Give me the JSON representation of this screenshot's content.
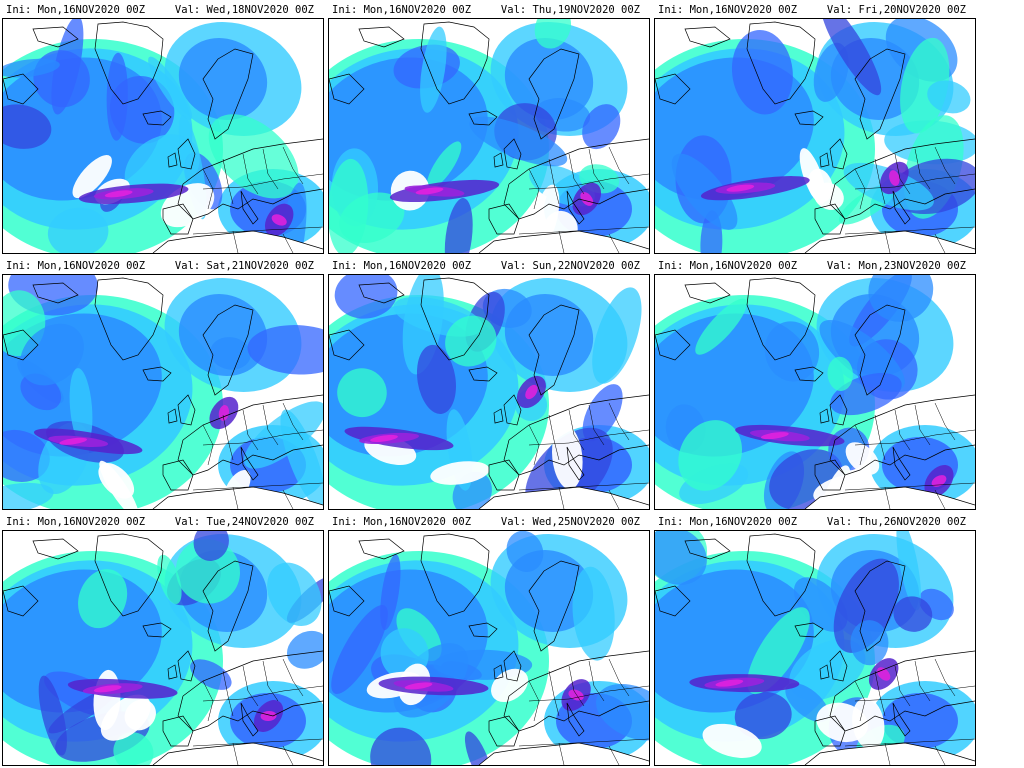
{
  "panels": [
    {
      "ini": "Ini: Mon,16NOV2020 00Z",
      "val": "Val: Wed,18NOV2020 00Z"
    },
    {
      "ini": "Ini: Mon,16NOV2020 00Z",
      "val": "Val: Thu,19NOV2020 00Z"
    },
    {
      "ini": "Ini: Mon,16NOV2020 00Z",
      "val": "Val: Fri,20NOV2020 00Z"
    },
    {
      "ini": "Ini: Mon,16NOV2020 00Z",
      "val": "Val: Sat,21NOV2020 00Z"
    },
    {
      "ini": "Ini: Mon,16NOV2020 00Z",
      "val": "Val: Sun,22NOV2020 00Z"
    },
    {
      "ini": "Ini: Mon,16NOV2020 00Z",
      "val": "Val: Mon,23NOV2020 00Z"
    },
    {
      "ini": "Ini: Mon,16NOV2020 00Z",
      "val": "Val: Tue,24NOV2020 00Z"
    },
    {
      "ini": "Ini: Mon,16NOV2020 00Z",
      "val": "Val: Wed,25NOV2020 00Z"
    },
    {
      "ini": "Ini: Mon,16NOV2020 00Z",
      "val": "Val: Thu,26NOV2020 00Z"
    }
  ],
  "colors": {
    "cyan": "#33ffcc",
    "light_blue": "#33ccff",
    "blue": "#2a8cff",
    "mid_blue": "#3366ff",
    "deep_blue": "#3344dd",
    "indigo": "#5522cc",
    "purple": "#9922dd",
    "magenta": "#dd22dd",
    "pink": "#ff66dd",
    "land_bg": "#ffffff",
    "coast": "#000000"
  }
}
